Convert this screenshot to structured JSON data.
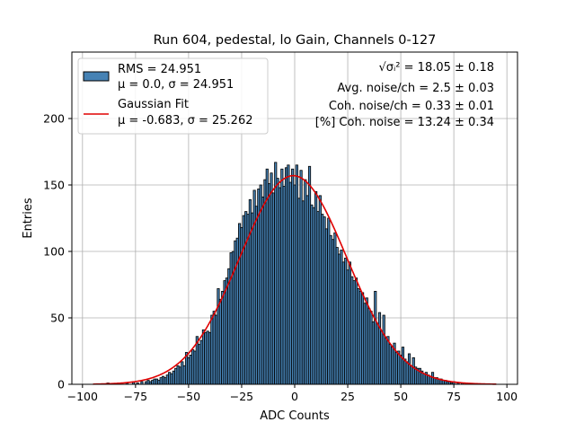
{
  "chart_data": {
    "type": "bar",
    "title": "Run 604, pedestal, lo Gain, Channels 0-127",
    "xlabel": "ADC Counts",
    "ylabel": "Entries",
    "xlim": [
      -105,
      105
    ],
    "ylim": [
      0,
      250
    ],
    "xticks": [
      -100,
      -75,
      -50,
      -25,
      0,
      25,
      50,
      75,
      100
    ],
    "yticks": [
      0,
      50,
      100,
      150,
      200
    ],
    "grid": true,
    "legend_position": "top-left",
    "bar_color": "#4682b4",
    "fit_color": "#e00000",
    "histogram": {
      "name": "RMS = 24.951",
      "name_line2": "μ = 0.0, σ = 24.951",
      "bin_width": 1,
      "bins": [
        {
          "x": -88,
          "y": 1
        },
        {
          "x": -83,
          "y": 1
        },
        {
          "x": -79,
          "y": 1
        },
        {
          "x": -76,
          "y": 2
        },
        {
          "x": -74,
          "y": 1
        },
        {
          "x": -72,
          "y": 2
        },
        {
          "x": -70,
          "y": 2
        },
        {
          "x": -69,
          "y": 3
        },
        {
          "x": -68,
          "y": 2
        },
        {
          "x": -67,
          "y": 3
        },
        {
          "x": -66,
          "y": 4
        },
        {
          "x": -65,
          "y": 4
        },
        {
          "x": -64,
          "y": 3
        },
        {
          "x": -63,
          "y": 5
        },
        {
          "x": -62,
          "y": 6
        },
        {
          "x": -61,
          "y": 5
        },
        {
          "x": -60,
          "y": 7
        },
        {
          "x": -59,
          "y": 9
        },
        {
          "x": -58,
          "y": 8
        },
        {
          "x": -57,
          "y": 10
        },
        {
          "x": -56,
          "y": 12
        },
        {
          "x": -55,
          "y": 14
        },
        {
          "x": -54,
          "y": 13
        },
        {
          "x": -53,
          "y": 17
        },
        {
          "x": -52,
          "y": 14
        },
        {
          "x": -51,
          "y": 24
        },
        {
          "x": -50,
          "y": 20
        },
        {
          "x": -49,
          "y": 22
        },
        {
          "x": -48,
          "y": 26
        },
        {
          "x": -47,
          "y": 25
        },
        {
          "x": -46,
          "y": 36
        },
        {
          "x": -45,
          "y": 30
        },
        {
          "x": -44,
          "y": 33
        },
        {
          "x": -43,
          "y": 41
        },
        {
          "x": -42,
          "y": 39
        },
        {
          "x": -41,
          "y": 40
        },
        {
          "x": -40,
          "y": 39
        },
        {
          "x": -39,
          "y": 52
        },
        {
          "x": -38,
          "y": 55
        },
        {
          "x": -37,
          "y": 52
        },
        {
          "x": -36,
          "y": 72
        },
        {
          "x": -35,
          "y": 64
        },
        {
          "x": -34,
          "y": 70
        },
        {
          "x": -33,
          "y": 78
        },
        {
          "x": -32,
          "y": 80
        },
        {
          "x": -31,
          "y": 87
        },
        {
          "x": -30,
          "y": 99
        },
        {
          "x": -29,
          "y": 100
        },
        {
          "x": -28,
          "y": 108
        },
        {
          "x": -27,
          "y": 110
        },
        {
          "x": -26,
          "y": 121
        },
        {
          "x": -25,
          "y": 118
        },
        {
          "x": -24,
          "y": 127
        },
        {
          "x": -23,
          "y": 130
        },
        {
          "x": -22,
          "y": 128
        },
        {
          "x": -21,
          "y": 139
        },
        {
          "x": -20,
          "y": 129
        },
        {
          "x": -19,
          "y": 146
        },
        {
          "x": -18,
          "y": 134
        },
        {
          "x": -17,
          "y": 147
        },
        {
          "x": -16,
          "y": 150
        },
        {
          "x": -15,
          "y": 141
        },
        {
          "x": -14,
          "y": 154
        },
        {
          "x": -13,
          "y": 162
        },
        {
          "x": -12,
          "y": 151
        },
        {
          "x": -11,
          "y": 159
        },
        {
          "x": -10,
          "y": 144
        },
        {
          "x": -9,
          "y": 167
        },
        {
          "x": -8,
          "y": 155
        },
        {
          "x": -7,
          "y": 148
        },
        {
          "x": -6,
          "y": 162
        },
        {
          "x": -5,
          "y": 149
        },
        {
          "x": -4,
          "y": 163
        },
        {
          "x": -3,
          "y": 165
        },
        {
          "x": -2,
          "y": 152
        },
        {
          "x": -1,
          "y": 162
        },
        {
          "x": 0,
          "y": 150
        },
        {
          "x": 1,
          "y": 165
        },
        {
          "x": 2,
          "y": 140
        },
        {
          "x": 3,
          "y": 161
        },
        {
          "x": 4,
          "y": 138
        },
        {
          "x": 5,
          "y": 154
        },
        {
          "x": 6,
          "y": 142
        },
        {
          "x": 7,
          "y": 164
        },
        {
          "x": 8,
          "y": 135
        },
        {
          "x": 9,
          "y": 133
        },
        {
          "x": 10,
          "y": 145
        },
        {
          "x": 11,
          "y": 130
        },
        {
          "x": 12,
          "y": 142
        },
        {
          "x": 13,
          "y": 128
        },
        {
          "x": 14,
          "y": 126
        },
        {
          "x": 15,
          "y": 117
        },
        {
          "x": 16,
          "y": 125
        },
        {
          "x": 17,
          "y": 112
        },
        {
          "x": 18,
          "y": 109
        },
        {
          "x": 19,
          "y": 114
        },
        {
          "x": 20,
          "y": 103
        },
        {
          "x": 21,
          "y": 98
        },
        {
          "x": 22,
          "y": 101
        },
        {
          "x": 23,
          "y": 92
        },
        {
          "x": 24,
          "y": 95
        },
        {
          "x": 25,
          "y": 86
        },
        {
          "x": 26,
          "y": 92
        },
        {
          "x": 27,
          "y": 81
        },
        {
          "x": 28,
          "y": 78
        },
        {
          "x": 29,
          "y": 80
        },
        {
          "x": 30,
          "y": 72
        },
        {
          "x": 31,
          "y": 70
        },
        {
          "x": 32,
          "y": 69
        },
        {
          "x": 33,
          "y": 61
        },
        {
          "x": 34,
          "y": 65
        },
        {
          "x": 35,
          "y": 57
        },
        {
          "x": 36,
          "y": 55
        },
        {
          "x": 37,
          "y": 47
        },
        {
          "x": 38,
          "y": 70
        },
        {
          "x": 39,
          "y": 46
        },
        {
          "x": 40,
          "y": 54
        },
        {
          "x": 41,
          "y": 40
        },
        {
          "x": 42,
          "y": 52
        },
        {
          "x": 43,
          "y": 35
        },
        {
          "x": 44,
          "y": 36
        },
        {
          "x": 45,
          "y": 30
        },
        {
          "x": 46,
          "y": 28
        },
        {
          "x": 47,
          "y": 31
        },
        {
          "x": 48,
          "y": 24
        },
        {
          "x": 49,
          "y": 25
        },
        {
          "x": 50,
          "y": 22
        },
        {
          "x": 51,
          "y": 28
        },
        {
          "x": 52,
          "y": 19
        },
        {
          "x": 53,
          "y": 17
        },
        {
          "x": 54,
          "y": 23
        },
        {
          "x": 55,
          "y": 14
        },
        {
          "x": 56,
          "y": 20
        },
        {
          "x": 57,
          "y": 13
        },
        {
          "x": 58,
          "y": 12
        },
        {
          "x": 59,
          "y": 12
        },
        {
          "x": 60,
          "y": 10
        },
        {
          "x": 61,
          "y": 8
        },
        {
          "x": 62,
          "y": 9
        },
        {
          "x": 63,
          "y": 7
        },
        {
          "x": 64,
          "y": 6
        },
        {
          "x": 65,
          "y": 9
        },
        {
          "x": 66,
          "y": 5
        },
        {
          "x": 67,
          "y": 5
        },
        {
          "x": 68,
          "y": 4
        },
        {
          "x": 69,
          "y": 4
        },
        {
          "x": 70,
          "y": 3
        },
        {
          "x": 71,
          "y": 3
        },
        {
          "x": 72,
          "y": 2
        },
        {
          "x": 73,
          "y": 2
        },
        {
          "x": 74,
          "y": 1
        },
        {
          "x": 75,
          "y": 2
        },
        {
          "x": 77,
          "y": 1
        },
        {
          "x": 79,
          "y": 1
        },
        {
          "x": 81,
          "y": 1
        }
      ]
    },
    "fit": {
      "name": "Gaussian Fit",
      "name_line2": "μ = -0.683, σ = 25.262",
      "mu": -0.683,
      "sigma": 25.262,
      "amplitude": 157,
      "x_range": [
        -95,
        95
      ]
    },
    "annotations": [
      "√σᵢ² = 18.05 ± 0.18",
      "Avg. noise/ch = 2.5 ± 0.03",
      "Coh. noise/ch = 0.33 ± 0.01",
      "[%] Coh. noise = 13.24 ± 0.34"
    ]
  }
}
